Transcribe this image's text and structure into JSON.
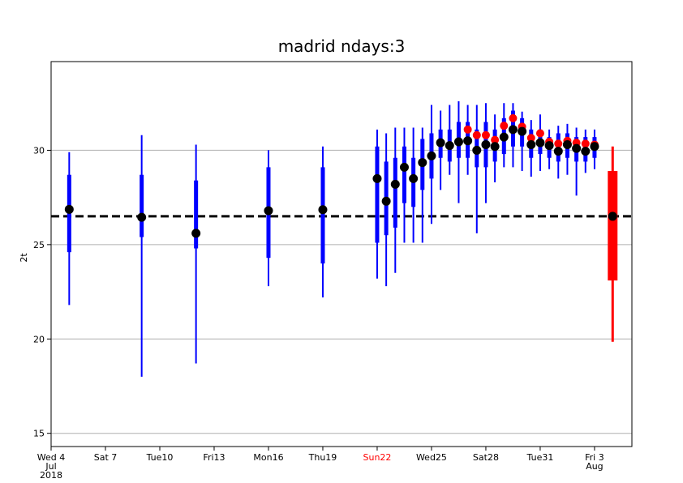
{
  "chart_data": {
    "type": "box",
    "title": "madrid ndays:3",
    "ylabel": "2t",
    "ylim": [
      14.3,
      34.7
    ],
    "yticks": [
      15,
      20,
      25,
      30
    ],
    "grid": true,
    "xlim": [
      "2018-07-04T00:00",
      "2018-08-05T01:30"
    ],
    "xticks": [
      {
        "value": "2018-07-04T00:00",
        "label": [
          "Wed 4",
          "Jul",
          "2018"
        ]
      },
      {
        "value": "2018-07-07T00:00",
        "label": [
          "Sat 7"
        ]
      },
      {
        "value": "2018-07-10T00:00",
        "label": [
          "Tue10"
        ]
      },
      {
        "value": "2018-07-13T00:00",
        "label": [
          "Fri13"
        ]
      },
      {
        "value": "2018-07-16T00:00",
        "label": [
          "Mon16"
        ]
      },
      {
        "value": "2018-07-19T00:00",
        "label": [
          "Thu19"
        ]
      },
      {
        "value": "2018-07-22T00:00",
        "label": [
          "Sun22"
        ],
        "color": "#ff0000"
      },
      {
        "value": "2018-07-25T00:00",
        "label": [
          "Wed25"
        ]
      },
      {
        "value": "2018-07-28T00:00",
        "label": [
          "Sat28"
        ]
      },
      {
        "value": "2018-07-31T00:00",
        "label": [
          "Tue31"
        ]
      },
      {
        "value": "2018-08-03T00:00",
        "label": [
          "Fri 3",
          "Aug"
        ]
      }
    ],
    "hline": 26.5,
    "median_color": "#000000",
    "series": [
      {
        "color": "#0000ff",
        "x": [
          "2018-07-05T00:00",
          "2018-07-09T00:00",
          "2018-07-12T00:00",
          "2018-07-16T00:00",
          "2018-07-19T00:00",
          "2018-07-22T00:00",
          "2018-07-22T12:00",
          "2018-07-23T00:00",
          "2018-07-23T12:00",
          "2018-07-24T00:00",
          "2018-07-24T12:00",
          "2018-07-25T00:00",
          "2018-07-25T12:00",
          "2018-07-26T00:00",
          "2018-07-26T12:00",
          "2018-07-27T00:00",
          "2018-07-27T12:00",
          "2018-07-28T00:00",
          "2018-07-28T12:00",
          "2018-07-29T00:00",
          "2018-07-29T12:00",
          "2018-07-30T00:00",
          "2018-07-30T12:00",
          "2018-07-31T00:00",
          "2018-07-31T12:00",
          "2018-08-01T00:00",
          "2018-08-01T12:00",
          "2018-08-02T00:00",
          "2018-08-02T12:00",
          "2018-08-03T00:00"
        ],
        "values": [
          26.87,
          26.45,
          25.6,
          26.8,
          26.85,
          28.5,
          27.3,
          28.2,
          29.1,
          28.5,
          29.35,
          29.7,
          30.4,
          30.25,
          30.45,
          30.5,
          30.0,
          30.3,
          30.2,
          30.7,
          31.1,
          31.0,
          30.3,
          30.4,
          30.25,
          29.95,
          30.3,
          30.1,
          29.95,
          30.2
        ],
        "low": [
          21.8,
          18.0,
          18.7,
          22.8,
          22.2,
          23.2,
          22.8,
          23.5,
          25.1,
          25.1,
          25.1,
          26.1,
          27.9,
          28.7,
          27.2,
          28.7,
          25.6,
          27.2,
          28.3,
          29.1,
          29.1,
          28.9,
          28.6,
          28.9,
          29.0,
          28.5,
          28.7,
          27.6,
          28.8,
          29.0
        ],
        "high": [
          29.9,
          30.8,
          30.3,
          30.0,
          30.2,
          31.1,
          30.9,
          31.2,
          31.2,
          31.2,
          31.2,
          32.4,
          32.1,
          32.4,
          32.6,
          32.4,
          32.4,
          32.5,
          31.9,
          32.5,
          32.5,
          32.05,
          31.6,
          31.9,
          31.1,
          31.3,
          31.4,
          31.2,
          31.1,
          31.1
        ],
        "q1": [
          24.6,
          25.4,
          24.8,
          24.3,
          24.0,
          25.1,
          25.5,
          25.9,
          27.2,
          27.0,
          27.9,
          28.5,
          29.6,
          29.4,
          29.6,
          29.6,
          29.1,
          29.1,
          29.4,
          29.8,
          30.2,
          30.2,
          29.6,
          29.8,
          29.6,
          29.4,
          29.6,
          29.4,
          29.4,
          29.6
        ],
        "q3": [
          28.7,
          28.7,
          28.4,
          29.1,
          29.1,
          30.2,
          29.4,
          29.6,
          30.2,
          29.6,
          30.6,
          30.9,
          31.1,
          31.1,
          31.5,
          31.5,
          31.1,
          31.5,
          31.1,
          31.7,
          32.1,
          31.7,
          31.1,
          31.1,
          30.7,
          30.9,
          30.9,
          30.7,
          30.7,
          30.7
        ]
      },
      {
        "color": "#ff0000",
        "x": [
          "2018-08-04T00:00"
        ],
        "values": [
          26.5
        ],
        "low": [
          19.85
        ],
        "high": [
          30.2
        ],
        "q1": [
          23.1
        ],
        "q3": [
          28.9
        ]
      }
    ],
    "markers": {
      "color": "#ff0000",
      "x": [
        "2018-07-27T00:00",
        "2018-07-27T12:00",
        "2018-07-28T00:00",
        "2018-07-28T12:00",
        "2018-07-29T00:00",
        "2018-07-29T12:00",
        "2018-07-30T00:00",
        "2018-07-30T12:00",
        "2018-07-31T00:00",
        "2018-07-31T12:00",
        "2018-08-01T00:00",
        "2018-08-01T12:00",
        "2018-08-02T00:00",
        "2018-08-02T12:00",
        "2018-08-03T00:00"
      ],
      "values": [
        31.1,
        30.8,
        30.8,
        30.55,
        31.3,
        31.7,
        31.25,
        30.65,
        30.9,
        30.45,
        30.35,
        30.5,
        30.4,
        30.35,
        30.3
      ]
    }
  }
}
